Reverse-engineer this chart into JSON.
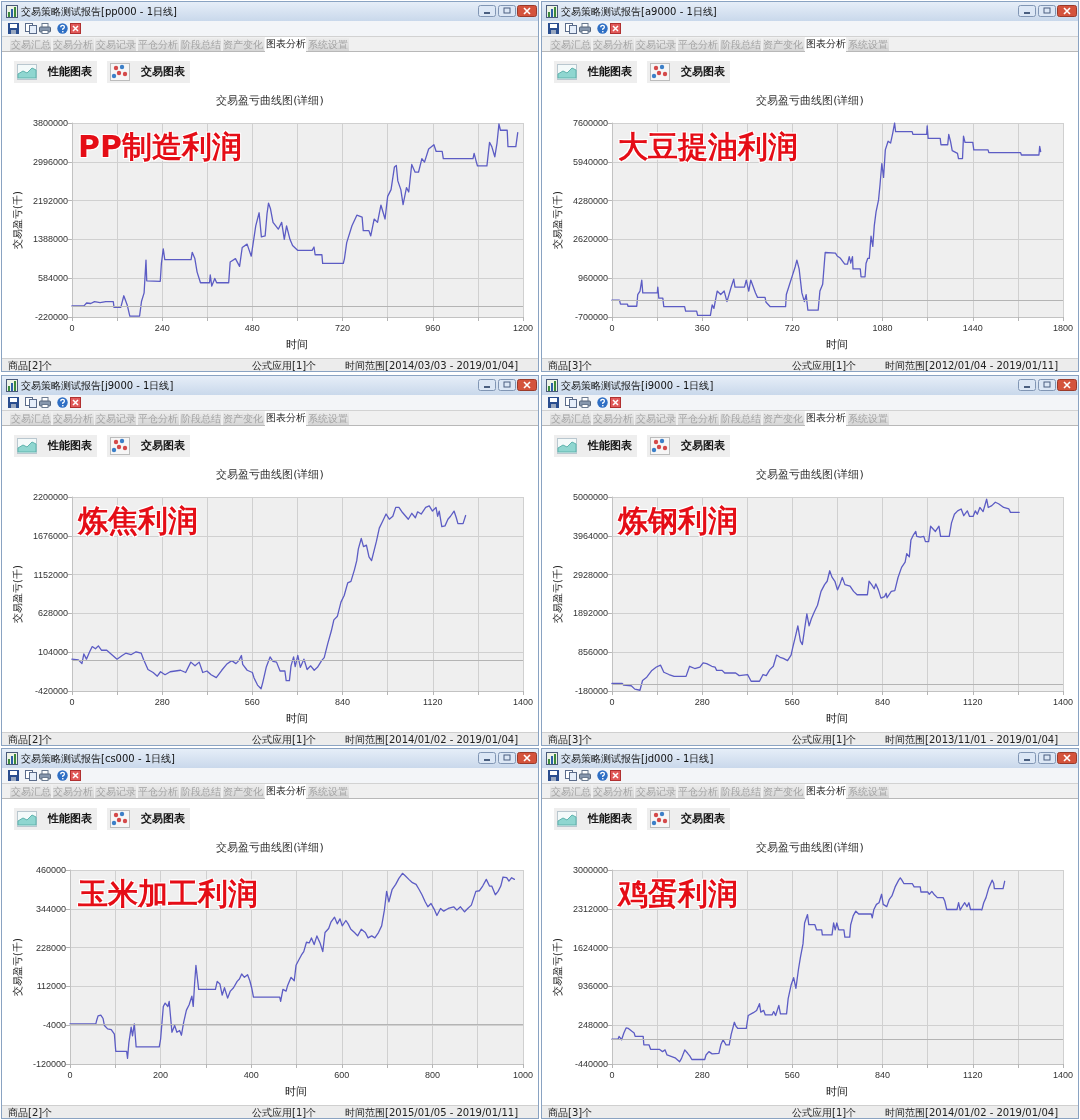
{
  "chart_data": [
    {
      "type": "line",
      "title": "交易盈亏曲线图(详细)",
      "xlabel": "时间",
      "ylabel": "交易盈亏(千)",
      "annotations": [
        "交易策略测试报告[pp000 - 1日线]",
        "交易汇总",
        "交易分析",
        "交易记录",
        "平仓分析",
        "阶段总结",
        "资产变化",
        "图表分析",
        "系统设置",
        "性能图表",
        "交易图表",
        "PP制造利润",
        "商品[2]个",
        "公式应用[1]个",
        "时间范围[2014/03/03 - 2019/01/04]"
      ],
      "x": [
        0,
        32,
        39,
        50,
        60,
        75,
        90,
        110,
        112,
        130,
        138,
        147,
        154,
        180,
        185,
        192,
        197,
        199,
        235,
        238,
        243,
        247,
        317,
        320,
        327,
        333,
        342,
        366,
        368,
        372,
        380,
        385,
        417,
        421,
        435,
        446,
        453,
        466,
        477,
        489,
        498,
        504,
        514,
        519,
        523,
        528,
        535,
        549,
        558,
        565,
        571,
        580,
        587,
        601,
        639,
        644,
        647,
        665,
        667,
        722,
        725,
        731,
        745,
        758,
        772,
        775,
        790,
        795,
        804,
        813,
        822,
        833,
        840,
        849,
        858,
        863,
        867,
        875,
        881,
        890,
        896,
        904,
        913,
        922,
        931,
        938,
        949,
        963,
        969,
        985,
        988,
        1067,
        1070,
        1076,
        1079,
        1104,
        1111,
        1117,
        1125,
        1131,
        1136,
        1140,
        1158,
        1160,
        1181,
        1186
      ],
      "values": [
        10000,
        10000,
        70000,
        60000,
        100000,
        80000,
        100000,
        100000,
        -20000,
        -20000,
        220000,
        30000,
        -200000,
        -200000,
        100000,
        280000,
        960000,
        530000,
        520000,
        890000,
        1190000,
        970000,
        970000,
        1120000,
        990000,
        710000,
        490000,
        490000,
        650000,
        420000,
        580000,
        490000,
        490000,
        920000,
        990000,
        830000,
        1220000,
        1290000,
        1040000,
        1670000,
        1940000,
        1440000,
        1460000,
        1920000,
        2140000,
        2030000,
        1740000,
        1600000,
        1740000,
        1390000,
        1670000,
        1390000,
        1260000,
        1160000,
        1160000,
        1230000,
        1070000,
        1070000,
        890000,
        890000,
        990000,
        1320000,
        1670000,
        1890000,
        1850000,
        1570000,
        1570000,
        1460000,
        1810000,
        1740000,
        2100000,
        1810000,
        2280000,
        2420000,
        2890000,
        2920000,
        2600000,
        2420000,
        2110000,
        2460000,
        2370000,
        2940000,
        2780000,
        2780000,
        3060000,
        2990000,
        3260000,
        3350000,
        3210000,
        3210000,
        3060000,
        3060000,
        3170000,
        2990000,
        2910000,
        2910000,
        3400000,
        3310000,
        3100000,
        3390000,
        3780000,
        3650000,
        3650000,
        3310000,
        3310000,
        3600000
      ],
      "color": "#5c5cc4",
      "xlim": [
        0,
        1200
      ],
      "xticks": [
        0,
        {
          "value": 120,
          "label": null
        },
        240,
        {
          "value": 360,
          "label": null
        },
        480,
        {
          "value": 600,
          "label": null
        },
        720,
        {
          "value": 840,
          "label": null
        },
        960,
        {
          "value": 1080,
          "label": null
        },
        1200
      ],
      "ylim": [
        -220000,
        3800000
      ],
      "yticks": [
        -220000,
        584000,
        1388000,
        2192000,
        2996000,
        3800000
      ],
      "grid": true,
      "ref_lines": [
        {
          "axis": "y",
          "value": 0
        }
      ]
    },
    {
      "type": "line",
      "title": "交易盈亏曲线图(详细)",
      "xlabel": "时间",
      "ylabel": "交易盈亏(千)",
      "annotations": [
        "交易策略测试报告[a9000 - 1日线]",
        "交易汇总",
        "交易分析",
        "交易记录",
        "平仓分析",
        "阶段总结",
        "资产变化",
        "图表分析",
        "系统设置",
        "性能图表",
        "交易图表",
        "大豆提油利润",
        "商品[3]个",
        "公式应用[1]个",
        "时间范围[2012/01/04 - 2019/01/11]"
      ],
      "x": [
        0,
        30,
        34,
        62,
        64,
        99,
        103,
        112,
        119,
        123,
        181,
        183,
        187,
        203,
        207,
        290,
        294,
        338,
        342,
        393,
        400,
        407,
        420,
        434,
        448,
        459,
        475,
        486,
        491,
        529,
        536,
        546,
        554,
        573,
        581,
        611,
        615,
        632,
        693,
        696,
        709,
        720,
        731,
        738,
        747,
        758,
        768,
        775,
        782,
        823,
        830,
        841,
        851,
        892,
        899,
        912,
        929,
        940,
        947,
        953,
        960,
        962,
        991,
        994,
        1010,
        1014,
        1021,
        1027,
        1034,
        1041,
        1047,
        1054,
        1064,
        1070,
        1077,
        1084,
        1091,
        1102,
        1112,
        1121,
        1128,
        1132,
        1198,
        1201,
        1256,
        1258,
        1262,
        1310,
        1313,
        1340,
        1344,
        1351,
        1358,
        1379,
        1383,
        1399,
        1403,
        1409,
        1440,
        1444,
        1501,
        1504,
        1631,
        1634,
        1704,
        1707,
        1711
      ],
      "values": [
        20000,
        20000,
        -150000,
        -150000,
        -240000,
        -240000,
        260000,
        410000,
        880000,
        330000,
        330000,
        580000,
        110000,
        110000,
        -260000,
        -260000,
        -450000,
        -450000,
        -630000,
        -630000,
        -180000,
        -330000,
        410000,
        260000,
        410000,
        -40000,
        550000,
        920000,
        580000,
        580000,
        880000,
        410000,
        880000,
        330000,
        140000,
        140000,
        -70000,
        -260000,
        -260000,
        260000,
        700000,
        1070000,
        1440000,
        1730000,
        1360000,
        330000,
        -40000,
        260000,
        -410000,
        -410000,
        410000,
        700000,
        2060000,
        2030000,
        1910000,
        1810000,
        1560000,
        1560000,
        1880000,
        1610000,
        1880000,
        1360000,
        1360000,
        1020000,
        1020000,
        1590000,
        1810000,
        1810000,
        2760000,
        2320000,
        3210000,
        3800000,
        4310000,
        4980000,
        5860000,
        5270000,
        6450000,
        6820000,
        6740000,
        7190000,
        7600000,
        7230000,
        7230000,
        7110000,
        7110000,
        7480000,
        6940000,
        6940000,
        6670000,
        6670000,
        7110000,
        6820000,
        6420000,
        6300000,
        6080000,
        6080000,
        7040000,
        6770000,
        6770000,
        6450000,
        6450000,
        6330000,
        6330000,
        6230000,
        6230000,
        6600000,
        6380000
      ],
      "color": "#5c5cc4",
      "xlim": [
        0,
        1800
      ],
      "xticks": [
        0,
        {
          "value": 180,
          "label": null
        },
        360,
        {
          "value": 540,
          "label": null
        },
        720,
        {
          "value": 900,
          "label": null
        },
        1080,
        {
          "value": 1260,
          "label": null
        },
        1440,
        {
          "value": 1620,
          "label": null
        },
        1800
      ],
      "ylim": [
        -700000,
        7600000
      ],
      "yticks": [
        -700000,
        960000,
        2620000,
        4280000,
        5940000,
        7600000
      ],
      "grid": true,
      "ref_lines": [
        {
          "axis": "y",
          "value": 0
        }
      ]
    },
    {
      "type": "line",
      "title": "交易盈亏曲线图(详细)",
      "xlabel": "时间",
      "ylabel": "交易盈亏(千)",
      "annotations": [
        "交易策略测试报告[j9000 - 1日线]",
        "交易汇总",
        "交易分析",
        "交易记录",
        "平仓分析",
        "阶段总结",
        "资产变化",
        "图表分析",
        "系统设置",
        "性能图表",
        "交易图表",
        "炼焦利润",
        "商品[2]个",
        "公式应用[1]个",
        "时间范围[2014/01/02 - 2019/01/04]"
      ],
      "x": [
        0,
        20,
        31,
        37,
        45,
        55,
        63,
        73,
        82,
        92,
        108,
        124,
        140,
        156,
        167,
        183,
        199,
        215,
        222,
        236,
        252,
        265,
        275,
        289,
        305,
        321,
        337,
        353,
        369,
        382,
        395,
        406,
        419,
        432,
        448,
        465,
        480,
        496,
        509,
        518,
        526,
        530,
        544,
        560,
        565,
        576,
        587,
        592,
        603,
        615,
        624,
        635,
        646,
        661,
        665,
        675,
        680,
        688,
        693,
        701,
        709,
        720,
        730,
        741,
        752,
        762,
        775,
        783,
        794,
        805,
        813,
        824,
        835,
        845,
        856,
        866,
        877,
        884,
        889,
        898,
        905,
        914,
        922,
        930,
        938,
        945,
        954,
        964,
        975,
        985,
        996,
        1005,
        1015,
        1026,
        1044,
        1055,
        1066,
        1073,
        1084,
        1098,
        1109,
        1119,
        1130,
        1135,
        1140,
        1148,
        1158,
        1167,
        1175,
        1186,
        1193,
        1198,
        1214,
        1222
      ],
      "values": [
        10000,
        0,
        -50000,
        80000,
        10000,
        110000,
        180000,
        150000,
        190000,
        130000,
        130000,
        70000,
        10000,
        60000,
        90000,
        70000,
        110000,
        90000,
        10000,
        -130000,
        -170000,
        -220000,
        -160000,
        -200000,
        -160000,
        -150000,
        -140000,
        -170000,
        -30000,
        -80000,
        -30000,
        -170000,
        -150000,
        -200000,
        -240000,
        -140000,
        -60000,
        -10000,
        -50000,
        -10000,
        60000,
        -60000,
        -140000,
        -170000,
        -240000,
        -340000,
        -390000,
        -310000,
        -100000,
        40000,
        -20000,
        -30000,
        -150000,
        -150000,
        -280000,
        -280000,
        -80000,
        40000,
        -90000,
        60000,
        -100000,
        10000,
        -130000,
        -80000,
        -140000,
        -100000,
        -10000,
        30000,
        220000,
        390000,
        540000,
        590000,
        780000,
        870000,
        1040000,
        1060000,
        1220000,
        1340000,
        1500000,
        1640000,
        1530000,
        1550000,
        1390000,
        1340000,
        1480000,
        1600000,
        1780000,
        1870000,
        1970000,
        1900000,
        1940000,
        2060000,
        2060000,
        1990000,
        1900000,
        1980000,
        1920000,
        2000000,
        1970000,
        2060000,
        2080000,
        2010000,
        2060000,
        1940000,
        2010000,
        1800000,
        1810000,
        1900000,
        1940000,
        2010000,
        1920000,
        1840000,
        1840000,
        1950000
      ],
      "color": "#5c5cc4",
      "xlim": [
        0,
        1400
      ],
      "xticks": [
        0,
        {
          "value": 140,
          "label": null
        },
        280,
        {
          "value": 420,
          "label": null
        },
        560,
        {
          "value": 700,
          "label": null
        },
        840,
        {
          "value": 980,
          "label": null
        },
        1120,
        {
          "value": 1260,
          "label": null
        },
        1400
      ],
      "ylim": [
        -420000,
        2200000
      ],
      "yticks": [
        -420000,
        104000,
        628000,
        1152000,
        1676000,
        2200000
      ],
      "grid": true,
      "ref_lines": [
        {
          "axis": "y",
          "value": 0
        }
      ]
    },
    {
      "type": "line",
      "title": "交易盈亏曲线图(详细)",
      "xlabel": "时间",
      "ylabel": "交易盈亏(千)",
      "annotations": [
        "交易策略测试报告[i9000 - 1日线]",
        "交易汇总",
        "交易分析",
        "交易记录",
        "平仓分析",
        "阶段总结",
        "资产变化",
        "图表分析",
        "系统设置",
        "性能图表",
        "交易图表",
        "炼钢利润",
        "商品[3]个",
        "公式应用[1]个",
        "时间范围[2013/11/01 - 2019/01/04]"
      ],
      "x": [
        0,
        32,
        36,
        60,
        71,
        87,
        95,
        108,
        124,
        138,
        151,
        161,
        177,
        193,
        230,
        241,
        257,
        273,
        283,
        294,
        310,
        320,
        325,
        342,
        350,
        384,
        395,
        421,
        432,
        458,
        469,
        479,
        490,
        501,
        511,
        522,
        532,
        545,
        556,
        562,
        570,
        577,
        585,
        591,
        598,
        605,
        612,
        619,
        628,
        638,
        649,
        660,
        668,
        676,
        683,
        692,
        700,
        708,
        715,
        723,
        739,
        750,
        761,
        793,
        798,
        806,
        814,
        819,
        827,
        835,
        846,
        851,
        854,
        867,
        878,
        888,
        899,
        910,
        915,
        923,
        928,
        936,
        943,
        946,
        957,
        968,
        973,
        983,
        989,
        1004,
        1015,
        1020,
        1047,
        1054,
        1063,
        1073,
        1084,
        1092,
        1103,
        1110,
        1121,
        1128,
        1134,
        1142,
        1152,
        1163,
        1168,
        1179,
        1190,
        1200,
        1216,
        1232,
        1237,
        1264
      ],
      "values": [
        20000,
        20000,
        -20000,
        -40000,
        -130000,
        -160000,
        100000,
        190000,
        370000,
        460000,
        510000,
        320000,
        260000,
        210000,
        210000,
        480000,
        420000,
        460000,
        570000,
        550000,
        480000,
        460000,
        370000,
        370000,
        300000,
        300000,
        230000,
        260000,
        80000,
        80000,
        260000,
        230000,
        390000,
        480000,
        780000,
        720000,
        690000,
        630000,
        780000,
        1010000,
        1290000,
        1560000,
        1150000,
        1060000,
        1470000,
        1880000,
        1560000,
        1750000,
        1930000,
        2110000,
        2480000,
        2660000,
        2750000,
        3030000,
        2860000,
        2750000,
        2520000,
        2680000,
        2850000,
        2660000,
        2620000,
        2480000,
        2390000,
        2390000,
        2750000,
        2660000,
        2550000,
        2680000,
        2520000,
        2300000,
        2340000,
        2430000,
        2310000,
        2480000,
        2500000,
        2850000,
        3120000,
        3260000,
        3490000,
        3400000,
        3850000,
        3990000,
        4080000,
        3950000,
        3930000,
        3950000,
        3810000,
        3810000,
        4220000,
        4080000,
        4220000,
        3950000,
        3950000,
        4310000,
        4540000,
        4630000,
        4680000,
        4500000,
        4630000,
        4480000,
        4480000,
        4630000,
        4540000,
        4720000,
        4610000,
        4940000,
        4720000,
        4770000,
        4860000,
        4820000,
        4720000,
        4680000,
        4590000,
        4590000
      ],
      "color": "#5c5cc4",
      "xlim": [
        0,
        1400
      ],
      "xticks": [
        0,
        {
          "value": 140,
          "label": null
        },
        280,
        {
          "value": 420,
          "label": null
        },
        560,
        {
          "value": 700,
          "label": null
        },
        840,
        {
          "value": 980,
          "label": null
        },
        1120,
        {
          "value": 1260,
          "label": null
        },
        1400
      ],
      "ylim": [
        -180000,
        5000000
      ],
      "yticks": [
        -180000,
        856000,
        1892000,
        2928000,
        3964000,
        5000000
      ],
      "grid": true,
      "ref_lines": [
        {
          "axis": "y",
          "value": 0
        }
      ]
    },
    {
      "type": "line",
      "title": "交易盈亏曲线图(详细)",
      "xlabel": "时间",
      "ylabel": "交易盈亏(千)",
      "annotations": [
        "交易策略测试报告[cs000 - 1日线]",
        "交易汇总",
        "交易分析",
        "交易记录",
        "平仓分析",
        "阶段总结",
        "资产变化",
        "图表分析",
        "系统设置",
        "性能图表",
        "交易图表",
        "玉米加工利润",
        "商品[2]个",
        "公式应用[1]个",
        "时间范围[2015/01/05 - 2019/01/11]"
      ],
      "x": [
        0,
        57,
        59,
        62,
        68,
        73,
        76,
        83,
        91,
        98,
        101,
        125,
        127,
        130,
        135,
        138,
        142,
        146,
        197,
        200,
        206,
        210,
        216,
        219,
        225,
        231,
        236,
        242,
        246,
        251,
        257,
        263,
        269,
        272,
        275,
        278,
        281,
        284,
        321,
        325,
        331,
        336,
        341,
        348,
        354,
        361,
        369,
        374,
        379,
        385,
        392,
        397,
        401,
        405,
        463,
        465,
        470,
        477,
        480,
        488,
        495,
        499,
        505,
        511,
        516,
        522,
        528,
        533,
        539,
        545,
        552,
        558,
        563,
        571,
        576,
        584,
        590,
        596,
        601,
        609,
        614,
        620,
        628,
        635,
        643,
        652,
        658,
        666,
        673,
        681,
        688,
        694,
        699,
        704,
        711,
        719,
        726,
        734,
        740,
        748,
        756,
        764,
        771,
        777,
        784,
        790,
        797,
        805,
        810,
        818,
        825,
        835,
        847,
        854,
        862,
        871,
        878,
        886,
        896,
        904,
        911,
        919,
        926,
        931,
        939,
        945,
        951,
        956,
        964,
        969,
        975,
        981
      ],
      "values": [
        0,
        0,
        11000,
        24000,
        26000,
        16000,
        -5000,
        -15000,
        -17000,
        -31000,
        -82000,
        -82000,
        -103000,
        -56000,
        -10000,
        -36000,
        0,
        -69000,
        -69000,
        -46000,
        52000,
        62000,
        52000,
        67000,
        -25000,
        -5000,
        -25000,
        -20000,
        -34000,
        5000,
        41000,
        57000,
        83000,
        52000,
        119000,
        175000,
        139000,
        103000,
        103000,
        127000,
        119000,
        86000,
        108000,
        77000,
        98000,
        108000,
        127000,
        134000,
        149000,
        139000,
        147000,
        129000,
        108000,
        80000,
        80000,
        67000,
        103000,
        98000,
        113000,
        139000,
        129000,
        175000,
        191000,
        206000,
        216000,
        244000,
        242000,
        257000,
        237000,
        263000,
        242000,
        216000,
        273000,
        285000,
        304000,
        319000,
        299000,
        314000,
        293000,
        309000,
        299000,
        283000,
        273000,
        263000,
        283000,
        273000,
        257000,
        263000,
        257000,
        273000,
        293000,
        340000,
        396000,
        365000,
        401000,
        417000,
        435000,
        450000,
        443000,
        432000,
        422000,
        417000,
        401000,
        386000,
        365000,
        350000,
        360000,
        340000,
        324000,
        345000,
        337000,
        345000,
        350000,
        340000,
        350000,
        335000,
        345000,
        355000,
        396000,
        398000,
        412000,
        432000,
        412000,
        412000,
        386000,
        396000,
        412000,
        439000,
        437000,
        427000,
        437000,
        432000
      ],
      "color": "#5c5cc4",
      "xlim": [
        0,
        1000
      ],
      "xticks": [
        0,
        {
          "value": 100,
          "label": null
        },
        200,
        {
          "value": 300,
          "label": null
        },
        400,
        {
          "value": 500,
          "label": null
        },
        600,
        {
          "value": 700,
          "label": null
        },
        800,
        {
          "value": 900,
          "label": null
        },
        1000
      ],
      "ylim": [
        -120000,
        460000
      ],
      "yticks": [
        -120000,
        -4000,
        112000,
        228000,
        344000,
        460000
      ],
      "grid": true,
      "ref_lines": [
        {
          "axis": "y",
          "value": 0
        }
      ]
    },
    {
      "type": "line",
      "title": "交易盈亏曲线图(详细)",
      "xlabel": "时间",
      "ylabel": "交易盈亏(千)",
      "annotations": [
        "交易策略测试报告[jd000 - 1日线]",
        "交易汇总",
        "交易分析",
        "交易记录",
        "平仓分析",
        "阶段总结",
        "资产变化",
        "图表分析",
        "系统设置",
        "性能图表",
        "交易图表",
        "鸡蛋利润",
        "商品[3]个",
        "公式应用[1]个",
        "时间范围[2014/01/02 - 2019/01/04]"
      ],
      "x": [
        0,
        19,
        22,
        30,
        37,
        44,
        51,
        62,
        69,
        72,
        97,
        99,
        115,
        120,
        147,
        157,
        165,
        171,
        196,
        210,
        216,
        226,
        235,
        242,
        248,
        288,
        292,
        301,
        311,
        332,
        338,
        345,
        354,
        364,
        370,
        380,
        385,
        391,
        417,
        423,
        439,
        449,
        458,
        462,
        471,
        476,
        497,
        502,
        508,
        518,
        523,
        542,
        547,
        556,
        564,
        571,
        579,
        585,
        593,
        598,
        607,
        611,
        630,
        635,
        651,
        653,
        683,
        688,
        693,
        698,
        704,
        720,
        723,
        738,
        741,
        749,
        757,
        766,
        805,
        808,
        813,
        821,
        829,
        837,
        842,
        853,
        861,
        869,
        879,
        890,
        895,
        900,
        906,
        932,
        938,
        957,
        959,
        980,
        985,
        993,
        1001,
        1010,
        1028,
        1033,
        1039,
        1071,
        1076,
        1081,
        1089,
        1095,
        1102,
        1108,
        1113,
        1145,
        1148,
        1154,
        1161,
        1169,
        1180,
        1185,
        1187,
        1214,
        1219
      ],
      "values": [
        0,
        0,
        50000,
        -10000,
        110000,
        200000,
        190000,
        140000,
        110000,
        50000,
        50000,
        -100000,
        -100000,
        -180000,
        -180000,
        -220000,
        -190000,
        -280000,
        -330000,
        -400000,
        -340000,
        -190000,
        -250000,
        -300000,
        -360000,
        -360000,
        -280000,
        -220000,
        -260000,
        -250000,
        -100000,
        -10000,
        -100000,
        -100000,
        80000,
        300000,
        230000,
        190000,
        190000,
        420000,
        470000,
        510000,
        630000,
        480000,
        510000,
        430000,
        430000,
        490000,
        420000,
        600000,
        450000,
        450000,
        720000,
        960000,
        1090000,
        900000,
        1240000,
        1450000,
        1690000,
        2060000,
        2210000,
        2030000,
        2030000,
        1940000,
        1940000,
        1850000,
        1850000,
        2060000,
        1940000,
        2060000,
        1940000,
        1940000,
        1810000,
        1810000,
        2030000,
        2190000,
        2270000,
        2220000,
        2220000,
        2150000,
        2300000,
        2390000,
        2420000,
        2570000,
        2390000,
        2350000,
        2480000,
        2540000,
        2700000,
        2820000,
        2860000,
        2820000,
        2760000,
        2760000,
        2700000,
        2700000,
        2610000,
        2610000,
        2570000,
        2620000,
        2560000,
        2510000,
        2510000,
        2450000,
        2300000,
        2300000,
        2420000,
        2290000,
        2370000,
        2420000,
        2350000,
        2420000,
        2300000,
        2300000,
        2290000,
        2420000,
        2510000,
        2670000,
        2820000,
        2760000,
        2670000,
        2670000,
        2800000
      ],
      "color": "#5c5cc4",
      "xlim": [
        0,
        1400
      ],
      "xticks": [
        0,
        {
          "value": 140,
          "label": null
        },
        280,
        {
          "value": 420,
          "label": null
        },
        560,
        {
          "value": 700,
          "label": null
        },
        840,
        {
          "value": 980,
          "label": null
        },
        1120,
        {
          "value": 1260,
          "label": null
        },
        1400
      ],
      "ylim": [
        -440000,
        3000000
      ],
      "yticks": [
        -440000,
        248000,
        936000,
        1624000,
        2312000,
        3000000
      ],
      "grid": true,
      "ref_lines": [
        {
          "axis": "y",
          "value": 0
        }
      ]
    }
  ]
}
